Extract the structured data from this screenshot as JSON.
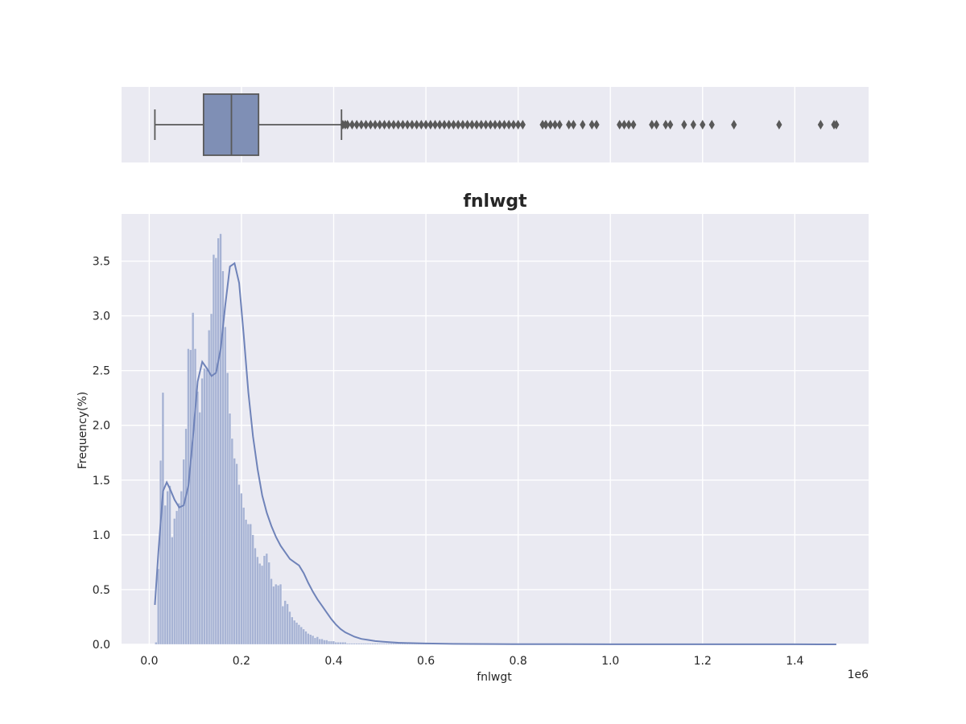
{
  "chart_data": [
    {
      "type": "box",
      "panel": "top",
      "variable": "fnlwgt",
      "orientation": "horizontal",
      "whisker_low": 12285,
      "q1": 117800,
      "median": 178300,
      "q3": 237100,
      "whisker_high": 417000,
      "outliers": [
        420000,
        425000,
        430000,
        440000,
        450000,
        460000,
        470000,
        480000,
        490000,
        500000,
        510000,
        520000,
        530000,
        540000,
        550000,
        560000,
        570000,
        580000,
        590000,
        600000,
        610000,
        620000,
        630000,
        640000,
        650000,
        660000,
        670000,
        680000,
        690000,
        700000,
        710000,
        720000,
        730000,
        740000,
        750000,
        760000,
        770000,
        780000,
        790000,
        800000,
        810000,
        853000,
        860000,
        870000,
        880000,
        890000,
        910000,
        920000,
        940000,
        960000,
        970000,
        1020000,
        1030000,
        1040000,
        1050000,
        1090000,
        1100000,
        1120000,
        1130000,
        1160000,
        1180000,
        1200000,
        1220000,
        1268000,
        1366000,
        1456000,
        1485000,
        1490000
      ],
      "xlim": [
        -60000,
        1560000
      ],
      "grid": true,
      "colors": {
        "box": "#7f8fb5",
        "line": "#595959",
        "background": "#eaeaf2",
        "grid": "#ffffff"
      }
    },
    {
      "type": "histogram",
      "panel": "bottom",
      "title": "fnlwgt",
      "xlabel": "fnlwgt",
      "ylabel": "Frequency(%)",
      "x_offset_label": "1e6",
      "xlim": [
        -60000,
        1560000
      ],
      "ylim": [
        0,
        3.93
      ],
      "xticks": [
        0,
        200000,
        400000,
        600000,
        800000,
        1000000,
        1200000,
        1400000
      ],
      "xtick_labels": [
        "0.0",
        "0.2",
        "0.4",
        "0.6",
        "0.8",
        "1.0",
        "1.2",
        "1.4"
      ],
      "yticks": [
        0,
        0.5,
        1.0,
        1.5,
        2.0,
        2.5,
        3.0,
        3.5
      ],
      "ytick_labels": [
        "0.0",
        "0.5",
        "1.0",
        "1.5",
        "2.0",
        "2.5",
        "3.0",
        "3.5"
      ],
      "grid": true,
      "bins": {
        "start": 12285,
        "width": 5000,
        "heights": [
          0.02,
          0.69,
          1.68,
          2.3,
          1.27,
          1.4,
          1.45,
          0.98,
          1.15,
          1.22,
          1.29,
          1.4,
          1.69,
          1.97,
          2.7,
          2.69,
          3.03,
          2.7,
          2.31,
          2.12,
          2.43,
          2.52,
          2.51,
          2.87,
          3.02,
          3.56,
          3.53,
          3.71,
          3.75,
          3.41,
          2.9,
          2.48,
          2.11,
          1.88,
          1.7,
          1.65,
          1.46,
          1.38,
          1.25,
          1.14,
          1.1,
          1.1,
          1.0,
          0.88,
          0.8,
          0.74,
          0.72,
          0.81,
          0.83,
          0.75,
          0.6,
          0.53,
          0.55,
          0.54,
          0.55,
          0.35,
          0.4,
          0.37,
          0.3,
          0.25,
          0.22,
          0.2,
          0.18,
          0.16,
          0.14,
          0.12,
          0.1,
          0.09,
          0.08,
          0.06,
          0.07,
          0.05,
          0.05,
          0.04,
          0.04,
          0.03,
          0.03,
          0.03,
          0.02,
          0.02,
          0.02,
          0.02,
          0.02,
          0.01,
          0.01,
          0.01,
          0.01,
          0.01,
          0.01,
          0.01,
          0.01,
          0.01,
          0.01,
          0.01,
          0.01,
          0.01,
          0.01,
          0.01,
          0.01,
          0.01,
          0.01,
          0.01,
          0.01,
          0.01,
          0.01,
          0.01,
          0.01,
          0.01,
          0.01,
          0.01,
          0.01,
          0.01,
          0.01,
          0.01,
          0.01,
          0.01,
          0.01,
          0.01,
          0.01,
          0.01,
          0.01,
          0.01,
          0.01,
          0.01,
          0.01,
          0.01,
          0.01,
          0.01,
          0.01,
          0.01
        ]
      },
      "kde": {
        "x": [
          12285,
          20000,
          30000,
          38000,
          45000,
          55000,
          65000,
          75000,
          85000,
          95000,
          105000,
          115000,
          125000,
          135000,
          145000,
          155000,
          165000,
          175000,
          185000,
          195000,
          205000,
          215000,
          225000,
          235000,
          245000,
          255000,
          265000,
          275000,
          285000,
          295000,
          305000,
          315000,
          325000,
          335000,
          345000,
          355000,
          365000,
          375000,
          385000,
          395000,
          405000,
          415000,
          425000,
          435000,
          445000,
          460000,
          475000,
          490000,
          505000,
          520000,
          540000,
          560000,
          580000,
          600000,
          630000,
          660000,
          700000,
          750000,
          800000,
          900000,
          1000000,
          1100000,
          1200000,
          1300000,
          1400000,
          1490000
        ],
        "y": [
          0.36,
          0.85,
          1.4,
          1.48,
          1.42,
          1.32,
          1.25,
          1.27,
          1.45,
          1.9,
          2.4,
          2.58,
          2.52,
          2.45,
          2.48,
          2.7,
          3.1,
          3.45,
          3.48,
          3.3,
          2.82,
          2.3,
          1.9,
          1.6,
          1.36,
          1.2,
          1.08,
          0.98,
          0.9,
          0.84,
          0.78,
          0.75,
          0.72,
          0.65,
          0.56,
          0.48,
          0.41,
          0.35,
          0.29,
          0.23,
          0.18,
          0.14,
          0.11,
          0.09,
          0.07,
          0.05,
          0.04,
          0.03,
          0.025,
          0.02,
          0.015,
          0.012,
          0.01,
          0.008,
          0.006,
          0.005,
          0.004,
          0.003,
          0.002,
          0.0015,
          0.001,
          0.001,
          0.0008,
          0.0006,
          0.0005,
          0.0004
        ]
      },
      "colors": {
        "bars": "#a7b3d4",
        "bar_edge": "#ffffff",
        "kde": "#6f83b9",
        "background": "#eaeaf2",
        "grid": "#ffffff"
      }
    }
  ]
}
